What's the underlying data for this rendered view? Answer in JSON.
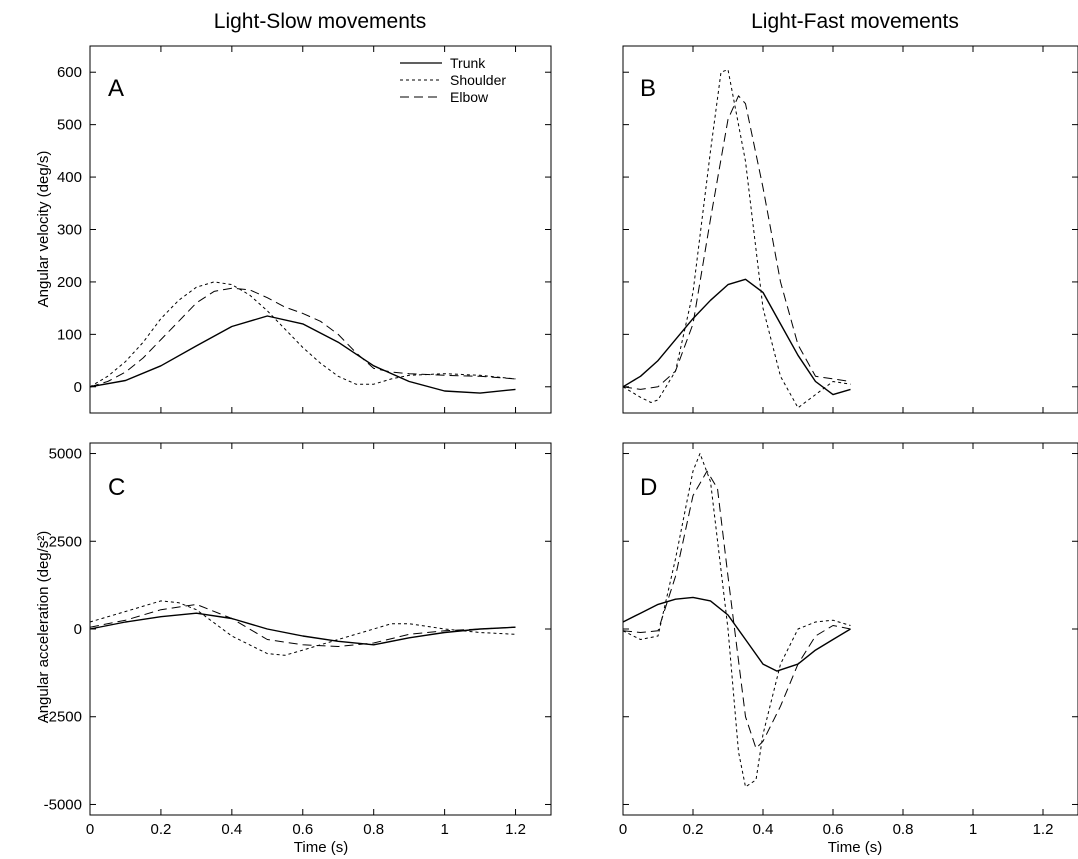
{
  "titles": {
    "left": "Light-Slow movements",
    "right": "Light-Fast movements"
  },
  "legend": {
    "trunk": "Trunk",
    "shoulder": "Shoulder",
    "elbow": "Elbow"
  },
  "chart_data": [
    {
      "panel": "A",
      "type": "line",
      "xlabel": "",
      "ylabel": "Angular velocity (deg/s)",
      "xlim": [
        0,
        1.3
      ],
      "ylim": [
        -50,
        650
      ],
      "yticks": [
        0,
        100,
        200,
        300,
        400,
        500,
        600
      ],
      "ytick_labels": [
        "0",
        "100",
        "200",
        "300",
        "400",
        "500",
        "600"
      ],
      "xticks": [
        0,
        0.2,
        0.4,
        0.6,
        0.8,
        1.0,
        1.2
      ],
      "legend_position": "top-right",
      "series": [
        {
          "name": "Trunk",
          "dash": "solid",
          "x": [
            0,
            0.1,
            0.2,
            0.3,
            0.4,
            0.5,
            0.6,
            0.7,
            0.8,
            0.9,
            1.0,
            1.1,
            1.2
          ],
          "y": [
            0,
            12,
            40,
            78,
            115,
            135,
            120,
            85,
            40,
            10,
            -8,
            -12,
            -5
          ]
        },
        {
          "name": "Shoulder",
          "dash": "short",
          "x": [
            0,
            0.05,
            0.1,
            0.15,
            0.2,
            0.25,
            0.3,
            0.35,
            0.4,
            0.45,
            0.5,
            0.55,
            0.6,
            0.65,
            0.7,
            0.75,
            0.8,
            0.85,
            0.9,
            1.0,
            1.1,
            1.2
          ],
          "y": [
            0,
            20,
            48,
            85,
            130,
            165,
            190,
            200,
            195,
            175,
            145,
            110,
            75,
            45,
            20,
            5,
            5,
            15,
            22,
            25,
            22,
            15
          ]
        },
        {
          "name": "Elbow",
          "dash": "long",
          "x": [
            0,
            0.05,
            0.1,
            0.15,
            0.2,
            0.25,
            0.3,
            0.35,
            0.4,
            0.45,
            0.5,
            0.55,
            0.6,
            0.65,
            0.7,
            0.75,
            0.8,
            0.85,
            0.9,
            1.0,
            1.1,
            1.2
          ],
          "y": [
            0,
            10,
            28,
            55,
            90,
            125,
            160,
            182,
            188,
            185,
            170,
            152,
            140,
            125,
            100,
            65,
            35,
            28,
            25,
            22,
            20,
            15
          ]
        }
      ]
    },
    {
      "panel": "B",
      "type": "line",
      "xlabel": "",
      "ylabel": "",
      "xlim": [
        0,
        1.3
      ],
      "ylim": [
        -50,
        650
      ],
      "yticks": [
        0,
        100,
        200,
        300,
        400,
        500,
        600
      ],
      "ytick_labels": [],
      "xticks": [
        0,
        0.2,
        0.4,
        0.6,
        0.8,
        1.0,
        1.2
      ],
      "series": [
        {
          "name": "Trunk",
          "dash": "solid",
          "x": [
            0,
            0.05,
            0.1,
            0.15,
            0.2,
            0.25,
            0.3,
            0.35,
            0.4,
            0.45,
            0.5,
            0.55,
            0.6,
            0.65
          ],
          "y": [
            0,
            20,
            50,
            90,
            130,
            165,
            195,
            205,
            180,
            120,
            60,
            10,
            -15,
            -5
          ]
        },
        {
          "name": "Shoulder",
          "dash": "short",
          "x": [
            0,
            0.05,
            0.08,
            0.1,
            0.15,
            0.2,
            0.25,
            0.28,
            0.3,
            0.35,
            0.4,
            0.45,
            0.5,
            0.55,
            0.6,
            0.65
          ],
          "y": [
            0,
            -20,
            -30,
            -25,
            30,
            180,
            450,
            600,
            605,
            430,
            150,
            20,
            -40,
            -15,
            10,
            5
          ]
        },
        {
          "name": "Elbow",
          "dash": "long",
          "x": [
            0,
            0.05,
            0.1,
            0.15,
            0.2,
            0.25,
            0.3,
            0.33,
            0.35,
            0.4,
            0.45,
            0.5,
            0.55,
            0.6,
            0.65
          ],
          "y": [
            0,
            -5,
            0,
            30,
            120,
            320,
            510,
            555,
            540,
            380,
            200,
            80,
            20,
            15,
            10
          ]
        }
      ]
    },
    {
      "panel": "C",
      "type": "line",
      "xlabel": "Time (s)",
      "ylabel": "Angular acceleration (deg/s²)",
      "xlim": [
        0,
        1.3
      ],
      "ylim": [
        -5300,
        5300
      ],
      "yticks": [
        -5000,
        -2500,
        0,
        2500,
        5000
      ],
      "ytick_labels": [
        "-5000",
        "-2500",
        "0",
        "2500",
        "5000"
      ],
      "xticks": [
        0,
        0.2,
        0.4,
        0.6,
        0.8,
        1.0,
        1.2
      ],
      "xtick_labels": [
        "0",
        "0.2",
        "0.4",
        "0.6",
        "0.8",
        "1",
        "1.2"
      ],
      "series": [
        {
          "name": "Trunk",
          "dash": "solid",
          "x": [
            0,
            0.1,
            0.2,
            0.3,
            0.4,
            0.5,
            0.6,
            0.7,
            0.8,
            0.9,
            1.0,
            1.1,
            1.2
          ],
          "y": [
            0,
            200,
            350,
            450,
            300,
            0,
            -200,
            -350,
            -450,
            -250,
            -100,
            0,
            50
          ]
        },
        {
          "name": "Shoulder",
          "dash": "short",
          "x": [
            0,
            0.1,
            0.2,
            0.25,
            0.3,
            0.4,
            0.5,
            0.55,
            0.6,
            0.7,
            0.8,
            0.85,
            0.9,
            1.0,
            1.1,
            1.2
          ],
          "y": [
            200,
            500,
            800,
            750,
            550,
            -200,
            -700,
            -750,
            -600,
            -300,
            0,
            150,
            150,
            0,
            -100,
            -150
          ]
        },
        {
          "name": "Elbow",
          "dash": "long",
          "x": [
            0,
            0.1,
            0.2,
            0.3,
            0.4,
            0.5,
            0.6,
            0.7,
            0.8,
            0.9,
            1.0,
            1.1,
            1.2
          ],
          "y": [
            50,
            250,
            550,
            700,
            300,
            -300,
            -450,
            -500,
            -400,
            -150,
            -50,
            0,
            50
          ]
        }
      ]
    },
    {
      "panel": "D",
      "type": "line",
      "xlabel": "Time (s)",
      "ylabel": "",
      "xlim": [
        0,
        1.3
      ],
      "ylim": [
        -5300,
        5300
      ],
      "yticks": [
        -5000,
        -2500,
        0,
        2500,
        5000
      ],
      "ytick_labels": [],
      "xticks": [
        0,
        0.2,
        0.4,
        0.6,
        0.8,
        1.0,
        1.2
      ],
      "xtick_labels": [
        "0",
        "0.2",
        "0.4",
        "0.6",
        "0.8",
        "1",
        "1.2"
      ],
      "series": [
        {
          "name": "Trunk",
          "dash": "solid",
          "x": [
            0,
            0.05,
            0.1,
            0.15,
            0.2,
            0.25,
            0.3,
            0.35,
            0.4,
            0.44,
            0.5,
            0.55,
            0.6,
            0.65
          ],
          "y": [
            200,
            450,
            700,
            850,
            900,
            800,
            400,
            -300,
            -1000,
            -1200,
            -1000,
            -600,
            -300,
            0
          ]
        },
        {
          "name": "Shoulder",
          "dash": "short",
          "x": [
            0,
            0.05,
            0.1,
            0.15,
            0.2,
            0.22,
            0.25,
            0.3,
            0.33,
            0.35,
            0.38,
            0.4,
            0.45,
            0.5,
            0.55,
            0.6,
            0.65
          ],
          "y": [
            -50,
            -300,
            -200,
            2000,
            4500,
            5000,
            4200,
            0,
            -3500,
            -4500,
            -4300,
            -3000,
            -1000,
            0,
            200,
            250,
            100
          ]
        },
        {
          "name": "Elbow",
          "dash": "long",
          "x": [
            0,
            0.05,
            0.1,
            0.15,
            0.2,
            0.24,
            0.27,
            0.3,
            0.35,
            0.38,
            0.4,
            0.45,
            0.5,
            0.55,
            0.6,
            0.65
          ],
          "y": [
            -50,
            -100,
            -50,
            1500,
            3800,
            4500,
            4000,
            1500,
            -2500,
            -3400,
            -3200,
            -2200,
            -1000,
            -200,
            100,
            0
          ]
        }
      ]
    }
  ]
}
